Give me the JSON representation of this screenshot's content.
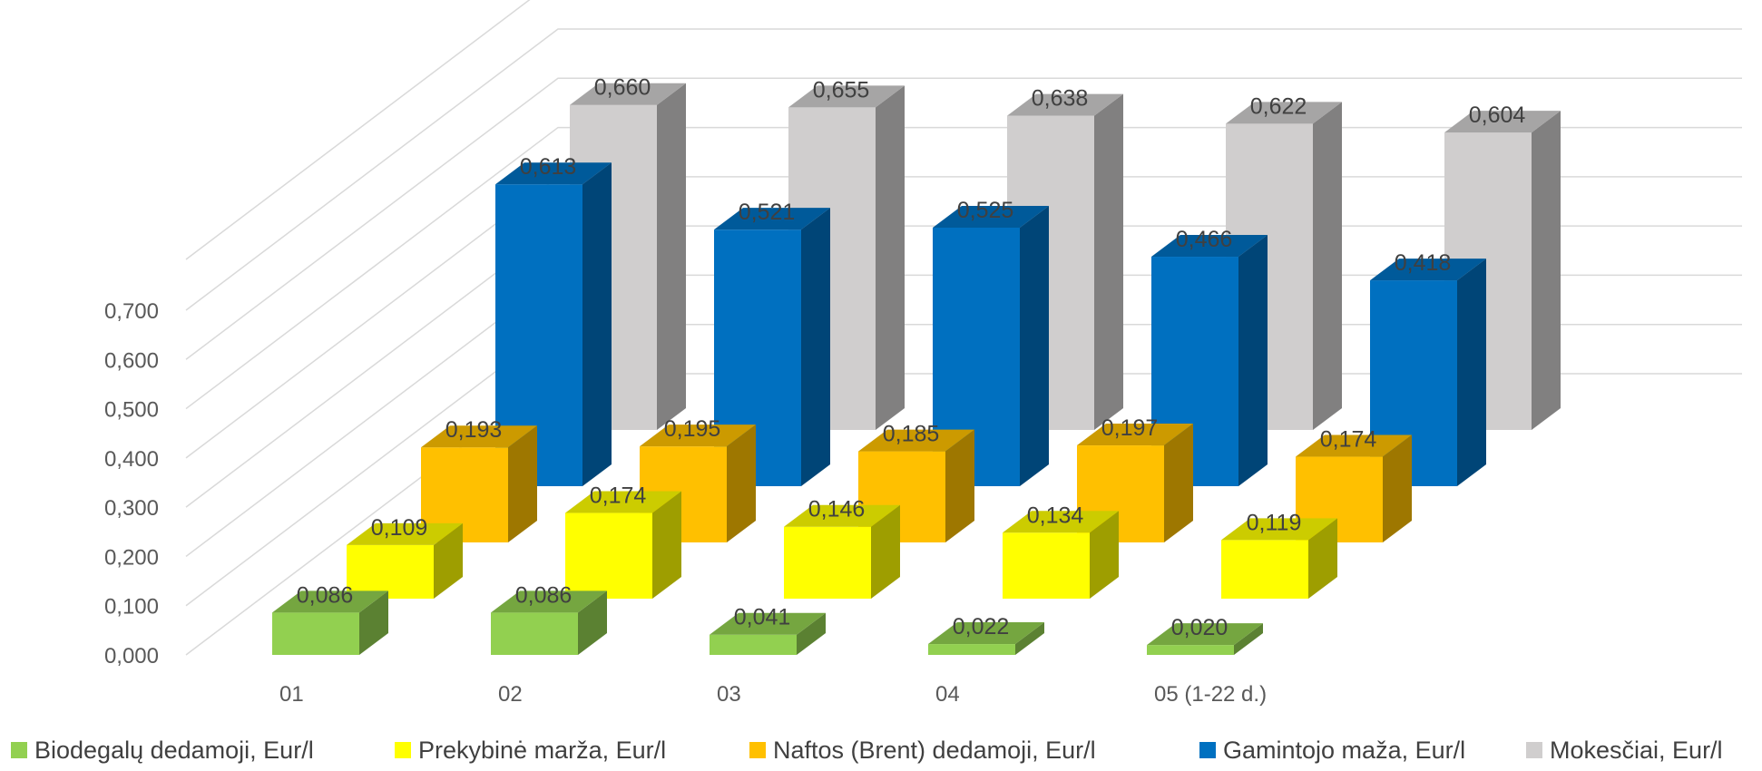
{
  "chart_data": {
    "type": "bar",
    "subtype": "3d-column-depth",
    "categories": [
      "01",
      "02",
      "03",
      "04",
      "05 (1-22 d.)"
    ],
    "series": [
      {
        "name": "Biodegalų dedamoji, Eur/l",
        "values": [
          0.086,
          0.086,
          0.041,
          0.022,
          0.02
        ],
        "labels": [
          "0,086",
          "0,086",
          "0,041",
          "0,022",
          "0,020"
        ],
        "color": "#92d050"
      },
      {
        "name": "Prekybinė marža, Eur/l",
        "values": [
          0.109,
          0.174,
          0.146,
          0.134,
          0.119
        ],
        "labels": [
          "0,109",
          "0,174",
          "0,146",
          "0,134",
          "0,119"
        ],
        "color": "#ffff00"
      },
      {
        "name": "Naftos (Brent) dedamoji, Eur/l",
        "values": [
          0.193,
          0.195,
          0.185,
          0.197,
          0.174
        ],
        "labels": [
          "0,193",
          "0,195",
          "0,185",
          "0,197",
          "0,174"
        ],
        "color": "#ffc000"
      },
      {
        "name": "Gamintojo maža, Eur/l",
        "values": [
          0.613,
          0.521,
          0.525,
          0.466,
          0.418
        ],
        "labels": [
          "0,613",
          "0,521",
          "0,525",
          "0,466",
          "0,418"
        ],
        "color": "#0070c0"
      },
      {
        "name": "Mokesčiai, Eur/l",
        "values": [
          0.66,
          0.655,
          0.638,
          0.622,
          0.604
        ],
        "labels": [
          "0,660",
          "0,655",
          "0,638",
          "0,622",
          "0,604"
        ],
        "color": "#d0cece"
      }
    ],
    "y_ticks": [
      0,
      0.1,
      0.2,
      0.3,
      0.4,
      0.5,
      0.6,
      0.7
    ],
    "y_tick_labels": [
      "0,000",
      "0,100",
      "0,200",
      "0,300",
      "0,400",
      "0,500",
      "0,600",
      "0,700"
    ],
    "ylim": [
      0,
      0.7
    ],
    "grid": true,
    "legend": "bottom"
  }
}
